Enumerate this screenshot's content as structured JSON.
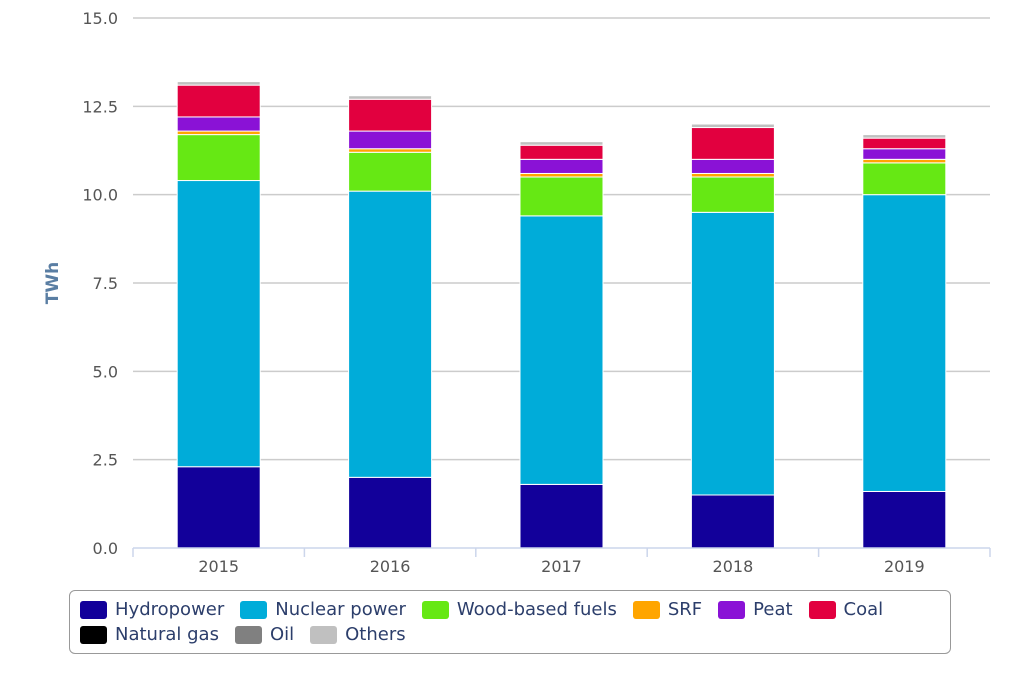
{
  "chart_data": {
    "type": "bar",
    "stacked": true,
    "title": "",
    "xlabel": "",
    "ylabel": "TWh",
    "ylim": [
      0,
      15
    ],
    "yticks": [
      "0.0",
      "2.5",
      "5.0",
      "7.5",
      "10.0",
      "12.5",
      "15.0"
    ],
    "categories": [
      "2015",
      "2016",
      "2017",
      "2018",
      "2019"
    ],
    "grid": true,
    "legend_position": "bottom",
    "series": [
      {
        "name": "Hydropower",
        "color": "#12009a",
        "values": [
          2.3,
          2.0,
          1.8,
          1.5,
          1.6
        ]
      },
      {
        "name": "Nuclear power",
        "color": "#00acd9",
        "values": [
          8.1,
          8.1,
          7.6,
          8.0,
          8.4
        ]
      },
      {
        "name": "Wood-based fuels",
        "color": "#66e814",
        "values": [
          1.3,
          1.1,
          1.1,
          1.0,
          0.9
        ]
      },
      {
        "name": "SRF",
        "color": "#ffa500",
        "values": [
          0.1,
          0.1,
          0.1,
          0.1,
          0.1
        ]
      },
      {
        "name": "Peat",
        "color": "#8a12d6",
        "values": [
          0.4,
          0.5,
          0.4,
          0.4,
          0.3
        ]
      },
      {
        "name": "Coal",
        "color": "#e2003f",
        "values": [
          0.9,
          0.9,
          0.4,
          0.9,
          0.3
        ]
      },
      {
        "name": "Natural gas",
        "color": "#000000",
        "values": [
          0.0,
          0.0,
          0.0,
          0.0,
          0.0
        ]
      },
      {
        "name": "Oil",
        "color": "#808080",
        "values": [
          0.0,
          0.0,
          0.0,
          0.0,
          0.0
        ]
      },
      {
        "name": "Others",
        "color": "#c0c0c0",
        "values": [
          0.1,
          0.1,
          0.1,
          0.1,
          0.1
        ]
      }
    ]
  },
  "legend": {
    "rows": [
      [
        "Hydropower",
        "Nuclear power",
        "Wood-based fuels",
        "SRF",
        "Peat",
        "Coal"
      ],
      [
        "Natural gas",
        "Oil",
        "Others"
      ]
    ]
  }
}
